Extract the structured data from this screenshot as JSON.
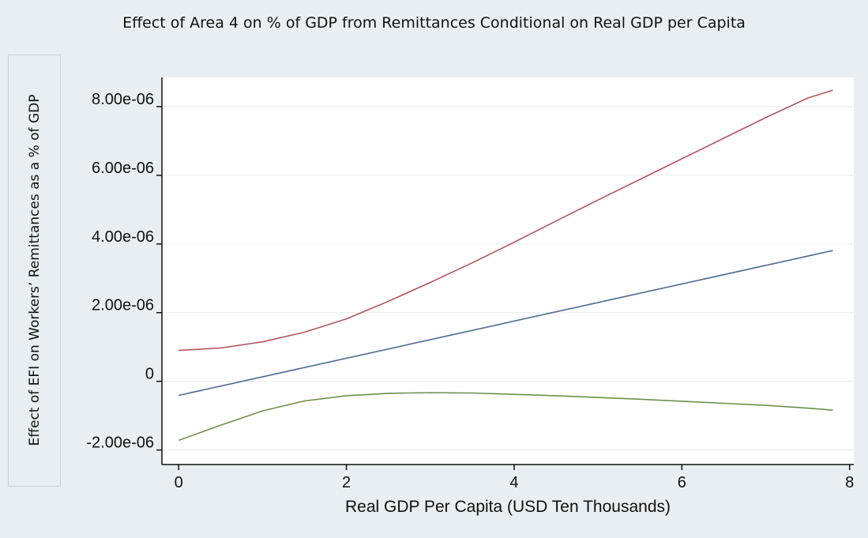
{
  "chart_data": {
    "type": "line",
    "title": "Effect of Area 4 on % of GDP from Remittances Conditional on Real GDP per Capita",
    "xlabel": "Real GDP Per Capita (USD Ten Thousands)",
    "ylabel": "Effect of EFI on Workers’ Remittances as a % of GDP",
    "xlim": [
      -0.2,
      8.05
    ],
    "ylim": [
      -2.4e-06,
      8.85e-06
    ],
    "x_ticks": [
      {
        "v": 0,
        "label": "0"
      },
      {
        "v": 2,
        "label": "2"
      },
      {
        "v": 4,
        "label": "4"
      },
      {
        "v": 6,
        "label": "6"
      },
      {
        "v": 8,
        "label": "8"
      }
    ],
    "y_ticks": [
      {
        "v": -2e-06,
        "label": "-2.00e-06"
      },
      {
        "v": 0,
        "label": "0"
      },
      {
        "v": 2e-06,
        "label": "2.00e-06"
      },
      {
        "v": 4e-06,
        "label": "4.00e-06"
      },
      {
        "v": 6e-06,
        "label": "6.00e-06"
      },
      {
        "v": 8e-06,
        "label": "8.00e-06"
      }
    ],
    "grid": true,
    "series": [
      {
        "role": "upper-bound",
        "color": "#b5555c",
        "x": [
          0,
          0.5,
          1,
          1.5,
          2,
          2.5,
          3,
          3.5,
          4,
          4.5,
          5,
          5.5,
          6,
          6.5,
          7,
          7.5,
          7.8
        ],
        "values": [
          9e-07,
          9.7e-07,
          1.15e-06,
          1.43e-06,
          1.82e-06,
          2.33e-06,
          2.88e-06,
          3.45e-06,
          4.05e-06,
          4.67e-06,
          5.28e-06,
          5.88e-06,
          6.48e-06,
          7.08e-06,
          7.68e-06,
          8.25e-06,
          8.48e-06
        ]
      },
      {
        "role": "estimate",
        "color": "#4b6c94",
        "x": [
          0,
          7.8
        ],
        "values": [
          -4.1e-07,
          3.81e-06
        ]
      },
      {
        "role": "lower-bound",
        "color": "#6f8f4a",
        "x": [
          0,
          0.5,
          1,
          1.5,
          2,
          2.5,
          3,
          3.5,
          4,
          4.5,
          5,
          5.5,
          6,
          6.5,
          7,
          7.5,
          7.8
        ],
        "values": [
          -1.72e-06,
          -1.28e-06,
          -8.6e-07,
          -5.7e-07,
          -4.2e-07,
          -3.5e-07,
          -3.3e-07,
          -3.4e-07,
          -3.8e-07,
          -4.2e-07,
          -4.7e-07,
          -5.2e-07,
          -5.8e-07,
          -6.4e-07,
          -7e-07,
          -7.8e-07,
          -8.4e-07
        ]
      }
    ]
  }
}
